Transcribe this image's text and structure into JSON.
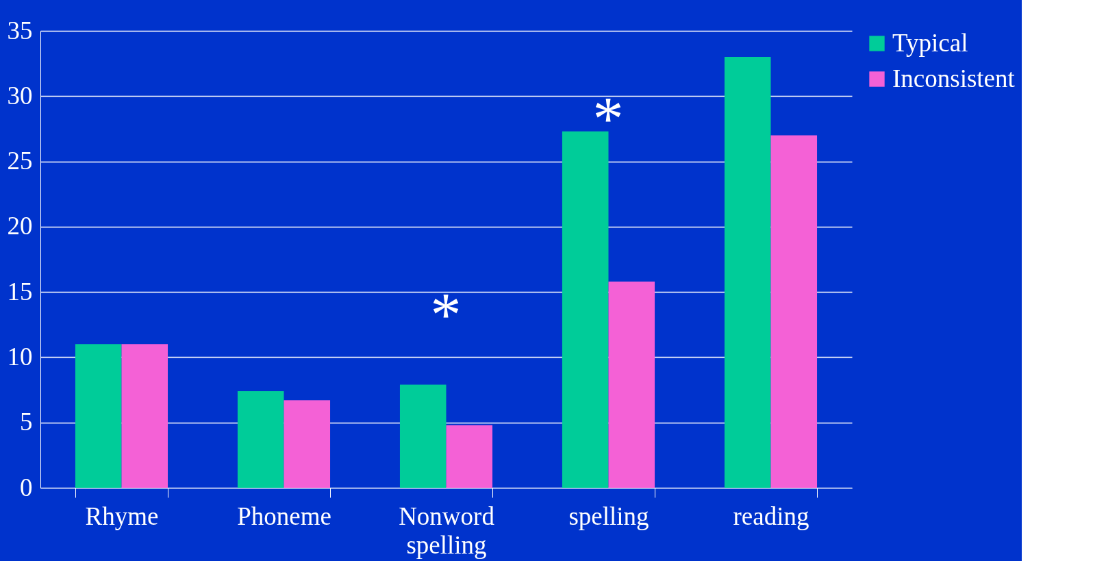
{
  "chart_data": {
    "type": "bar",
    "categories": [
      "Rhyme",
      "Phoneme",
      "Nonword spelling",
      "spelling",
      "reading"
    ],
    "series": [
      {
        "name": "Typical",
        "color": "#00cc99",
        "values": [
          11.0,
          7.4,
          7.9,
          27.3,
          33.0
        ]
      },
      {
        "name": "Inconsistent",
        "color": "#f461d6",
        "values": [
          11.0,
          6.7,
          4.8,
          15.8,
          27.0
        ]
      }
    ],
    "ylim": [
      0,
      35
    ],
    "yticks": [
      0,
      5,
      10,
      15,
      20,
      25,
      30,
      35
    ],
    "grid": "y",
    "legend": "right",
    "annotations": [
      "*",
      "*"
    ]
  }
}
